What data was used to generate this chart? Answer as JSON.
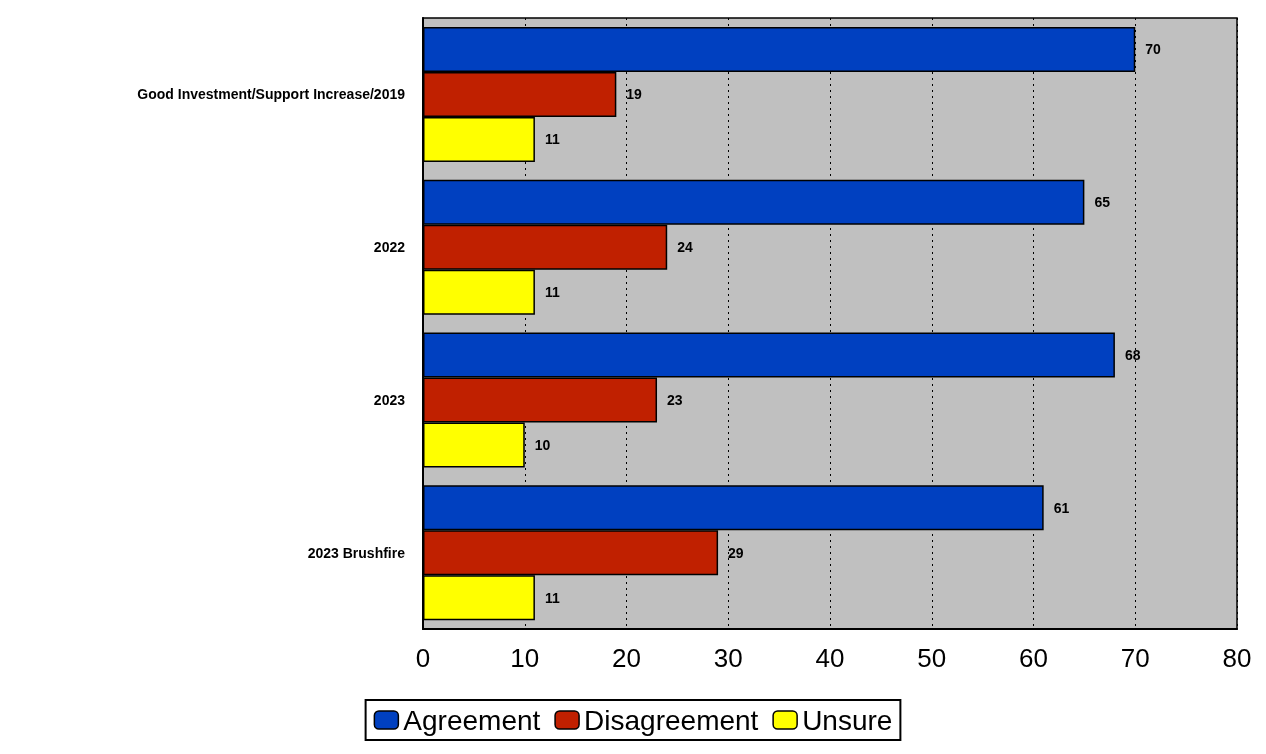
{
  "chart_data": {
    "type": "bar",
    "orientation": "horizontal",
    "categories": [
      "Good Investment/Support Increase/2019",
      "2022",
      "2023",
      "2023 Brushfire"
    ],
    "series": [
      {
        "name": "Agreement",
        "color": "#0040c0",
        "values": [
          70,
          65,
          68,
          61
        ]
      },
      {
        "name": "Disagreement",
        "color": "#c02000",
        "values": [
          19,
          24,
          23,
          29
        ]
      },
      {
        "name": "Unsure",
        "color": "#ffff00",
        "values": [
          11,
          11,
          10,
          11
        ]
      }
    ],
    "xlim": [
      0,
      80
    ],
    "xticks": [
      0,
      10,
      20,
      30,
      40,
      50,
      60,
      70,
      80
    ],
    "grid": "x",
    "legend": "bottom",
    "data_labels": true
  }
}
